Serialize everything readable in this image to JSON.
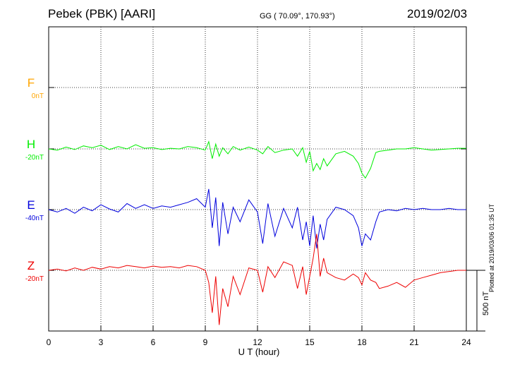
{
  "header": {
    "station": "Pebek (PBK)  [AARI]",
    "coords": "GG ( 70.09°, 170.93°)",
    "date": "2019/02/03"
  },
  "footer": {
    "plotted": "Plotted at 2019/03/06 01:35 UT"
  },
  "colors": {
    "F": "#ffa500",
    "H": "#00ee00",
    "E": "#0000dd",
    "Z": "#ee0000"
  },
  "chart_data": {
    "type": "line",
    "xlabel": "U T (hour)",
    "xlim": [
      0,
      24
    ],
    "xticks": [
      "0",
      "3",
      "6",
      "9",
      "12",
      "15",
      "18",
      "21",
      "24"
    ],
    "scale_label": "500 nT",
    "scale_nT": 500,
    "channels": [
      {
        "name": "F",
        "offset": "0nT",
        "color": "#ffa500",
        "values": []
      },
      {
        "name": "H",
        "offset": "-20nT",
        "color": "#00ee00",
        "x": [
          0,
          0.5,
          1,
          1.5,
          2,
          2.5,
          3,
          3.5,
          4,
          4.5,
          5,
          5.5,
          6,
          6.5,
          7,
          7.5,
          8,
          8.5,
          9,
          9.2,
          9.4,
          9.6,
          9.8,
          10,
          10.3,
          10.6,
          11,
          11.5,
          12,
          12.3,
          12.6,
          13,
          13.5,
          14,
          14.3,
          14.6,
          14.8,
          15,
          15.2,
          15.4,
          15.6,
          15.8,
          16,
          16.5,
          17,
          17.5,
          17.8,
          18,
          18.2,
          18.5,
          18.8,
          19,
          19.5,
          20,
          20.5,
          21,
          21.5,
          22,
          22.5,
          23,
          23.5,
          24
        ],
        "y": [
          0,
          -10,
          15,
          -5,
          25,
          10,
          30,
          -5,
          20,
          0,
          35,
          5,
          10,
          -5,
          5,
          0,
          20,
          10,
          -10,
          60,
          -80,
          40,
          -60,
          10,
          -40,
          20,
          -10,
          15,
          -10,
          -40,
          20,
          -30,
          -10,
          0,
          -60,
          10,
          -110,
          -20,
          -180,
          -120,
          -170,
          -80,
          -140,
          -40,
          -20,
          -60,
          -120,
          -200,
          -240,
          -160,
          -30,
          -20,
          -10,
          0,
          0,
          10,
          0,
          -10,
          -5,
          0,
          5,
          5
        ]
      },
      {
        "name": "E",
        "offset": "-40nT",
        "color": "#0000dd",
        "x": [
          0,
          0.5,
          1,
          1.5,
          2,
          2.5,
          3,
          3.5,
          4,
          4.5,
          5,
          5.5,
          6,
          6.5,
          7,
          7.5,
          8,
          8.5,
          9,
          9.2,
          9.4,
          9.6,
          9.8,
          10,
          10.3,
          10.6,
          11,
          11.5,
          12,
          12.3,
          12.6,
          13,
          13.5,
          14,
          14.3,
          14.6,
          14.8,
          15,
          15.2,
          15.4,
          15.6,
          15.8,
          16,
          16.5,
          17,
          17.5,
          17.8,
          18,
          18.2,
          18.5,
          18.8,
          19,
          19.5,
          20,
          20.5,
          21,
          21.5,
          22,
          22.5,
          23,
          23.5,
          24
        ],
        "y": [
          0,
          -20,
          10,
          -30,
          20,
          -10,
          40,
          5,
          -20,
          50,
          10,
          40,
          10,
          30,
          20,
          40,
          60,
          90,
          20,
          170,
          -150,
          100,
          -300,
          60,
          -200,
          20,
          -100,
          80,
          -20,
          -280,
          50,
          -220,
          10,
          -150,
          20,
          -250,
          -100,
          -300,
          -50,
          -320,
          -120,
          -250,
          -80,
          20,
          0,
          -50,
          -150,
          -300,
          -200,
          -250,
          -100,
          -20,
          0,
          -10,
          10,
          0,
          10,
          0,
          0,
          10,
          0,
          0
        ]
      },
      {
        "name": "Z",
        "offset": "-20nT",
        "color": "#ee0000",
        "x": [
          0,
          0.5,
          1,
          1.5,
          2,
          2.5,
          3,
          3.5,
          4,
          4.5,
          5,
          5.5,
          6,
          6.5,
          7,
          7.5,
          8,
          8.5,
          9,
          9.2,
          9.4,
          9.6,
          9.8,
          10,
          10.3,
          10.6,
          11,
          11.5,
          12,
          12.3,
          12.6,
          13,
          13.5,
          14,
          14.3,
          14.6,
          14.8,
          15,
          15.2,
          15.4,
          15.6,
          15.8,
          16,
          16.5,
          17,
          17.5,
          17.8,
          18,
          18.2,
          18.5,
          18.8,
          19,
          19.5,
          20,
          20.5,
          21,
          21.5,
          22,
          22.5,
          23,
          23.5,
          24
        ],
        "y": [
          0,
          10,
          -5,
          20,
          0,
          25,
          10,
          30,
          20,
          40,
          30,
          20,
          35,
          25,
          30,
          20,
          40,
          30,
          0,
          -100,
          -350,
          -50,
          -450,
          -150,
          -300,
          -50,
          -200,
          20,
          0,
          -180,
          30,
          -60,
          70,
          40,
          -150,
          30,
          -200,
          -50,
          100,
          300,
          -50,
          100,
          -20,
          -60,
          -80,
          -30,
          -60,
          -120,
          -20,
          -80,
          -100,
          -150,
          -130,
          -100,
          -140,
          -80,
          -60,
          -40,
          -20,
          -10,
          0,
          0
        ]
      }
    ]
  }
}
